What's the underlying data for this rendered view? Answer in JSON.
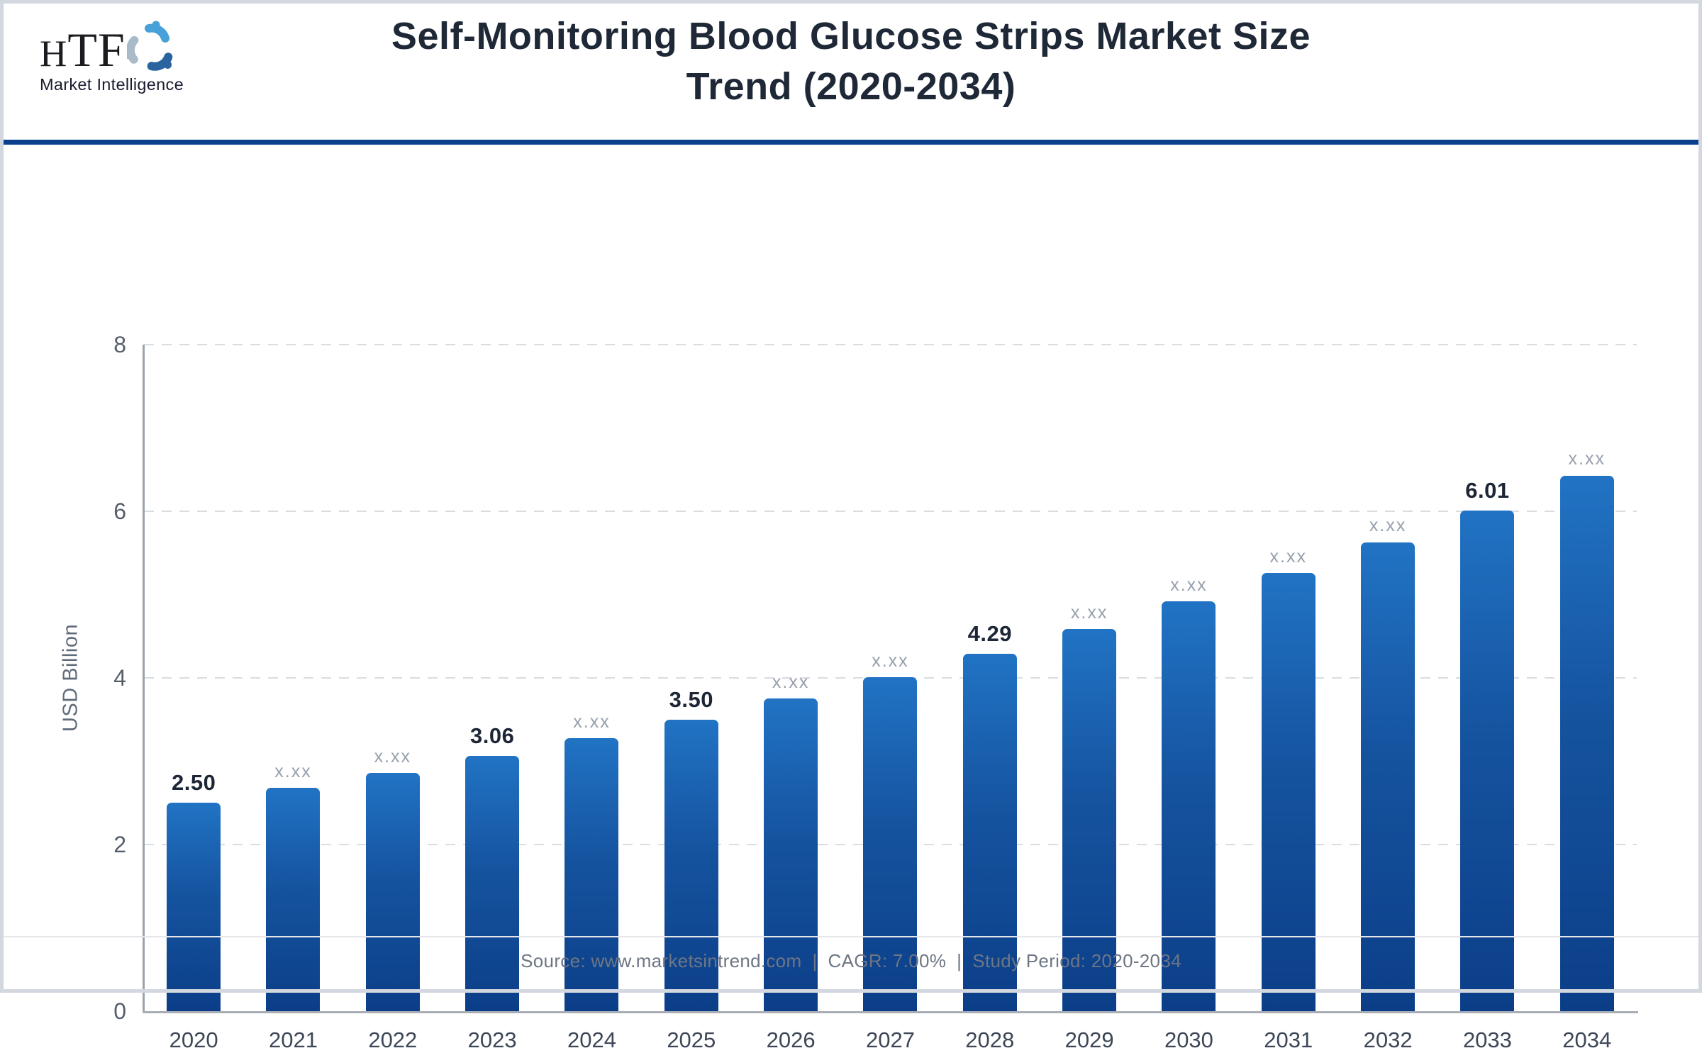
{
  "header": {
    "logo": {
      "text": "HTF",
      "subtext": "Market Intelligence",
      "icon": "three-swirl-figures-icon",
      "icon_colors": [
        "#47a0d8",
        "#a9bac8",
        "#2a649f"
      ]
    },
    "title_line1": "Self-Monitoring Blood Glucose Strips Market Size",
    "title_line2": "Trend (2020-2034)"
  },
  "chart_data": {
    "type": "bar",
    "title": "Self-Monitoring Blood Glucose Strips Market Size Trend (2020-2034)",
    "xlabel": "",
    "ylabel": "USD Billion",
    "ylim": [
      0,
      8
    ],
    "yticks": [
      0,
      2,
      4,
      6,
      8
    ],
    "grid": true,
    "legend_position": "none",
    "categories": [
      "2020",
      "2021",
      "2022",
      "2023",
      "2024",
      "2025",
      "2026",
      "2027",
      "2028",
      "2029",
      "2030",
      "2031",
      "2032",
      "2033",
      "2034"
    ],
    "values": [
      2.5,
      2.68,
      2.86,
      3.06,
      3.28,
      3.5,
      3.75,
      4.01,
      4.29,
      4.59,
      4.92,
      5.26,
      5.63,
      6.01,
      6.43
    ],
    "bar_labels": [
      "2.50",
      "x.xx",
      "x.xx",
      "3.06",
      "x.xx",
      "3.50",
      "x.xx",
      "x.xx",
      "4.29",
      "x.xx",
      "x.xx",
      "x.xx",
      "x.xx",
      "6.01",
      "x.xx"
    ],
    "emphasized": [
      true,
      false,
      false,
      true,
      false,
      true,
      false,
      false,
      true,
      false,
      false,
      false,
      false,
      true,
      false
    ]
  },
  "colors": {
    "accent_navy": "#0a3f8c",
    "bar_gradient_top": "#2173c4",
    "bar_gradient_bottom": "#0c3e88",
    "title_text": "#1e2836",
    "emphasized_label": "#1c2636",
    "muted_label": "#97a0ae",
    "axis_line": "#9aa2ac",
    "gridline": "#d9dce2",
    "tick_text": "#555e6b",
    "footer_text": "#6e7684",
    "frame_border": "#d3d7df"
  },
  "footer": {
    "text": "Source: www.marketsintrend.com  |  CAGR: 7.00%  |  Study Period: 2020-2034"
  }
}
